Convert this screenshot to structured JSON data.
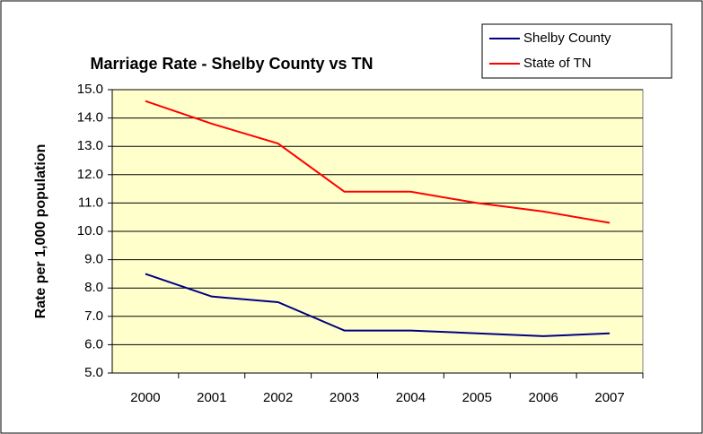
{
  "chart_data": {
    "type": "line",
    "title": "Marriage Rate - Shelby County vs TN",
    "y_label": "Rate per 1,000 population",
    "categories": [
      "2000",
      "2001",
      "2002",
      "2003",
      "2004",
      "2005",
      "2006",
      "2007"
    ],
    "series": [
      {
        "name": "Shelby County",
        "color": "#000080",
        "values": [
          8.5,
          7.7,
          7.5,
          6.5,
          6.5,
          6.4,
          6.3,
          6.4
        ]
      },
      {
        "name": "State of TN",
        "color": "#ff0000",
        "values": [
          14.6,
          13.8,
          13.1,
          11.4,
          11.4,
          11.0,
          10.7,
          10.3
        ]
      }
    ],
    "ylim": [
      5,
      15
    ],
    "yticks": [
      {
        "value": 5,
        "label": "5.0"
      },
      {
        "value": 6,
        "label": "6.0"
      },
      {
        "value": 7,
        "label": "7.0"
      },
      {
        "value": 8,
        "label": "8.0"
      },
      {
        "value": 9,
        "label": "9.0"
      },
      {
        "value": 10,
        "label": "10.0"
      },
      {
        "value": 11,
        "label": "11.0"
      },
      {
        "value": 12,
        "label": "12.0"
      },
      {
        "value": 13,
        "label": "13.0"
      },
      {
        "value": 14,
        "label": "14.0"
      },
      {
        "value": 15,
        "label": "15.0"
      }
    ],
    "grid": true,
    "legend": "top-right"
  }
}
